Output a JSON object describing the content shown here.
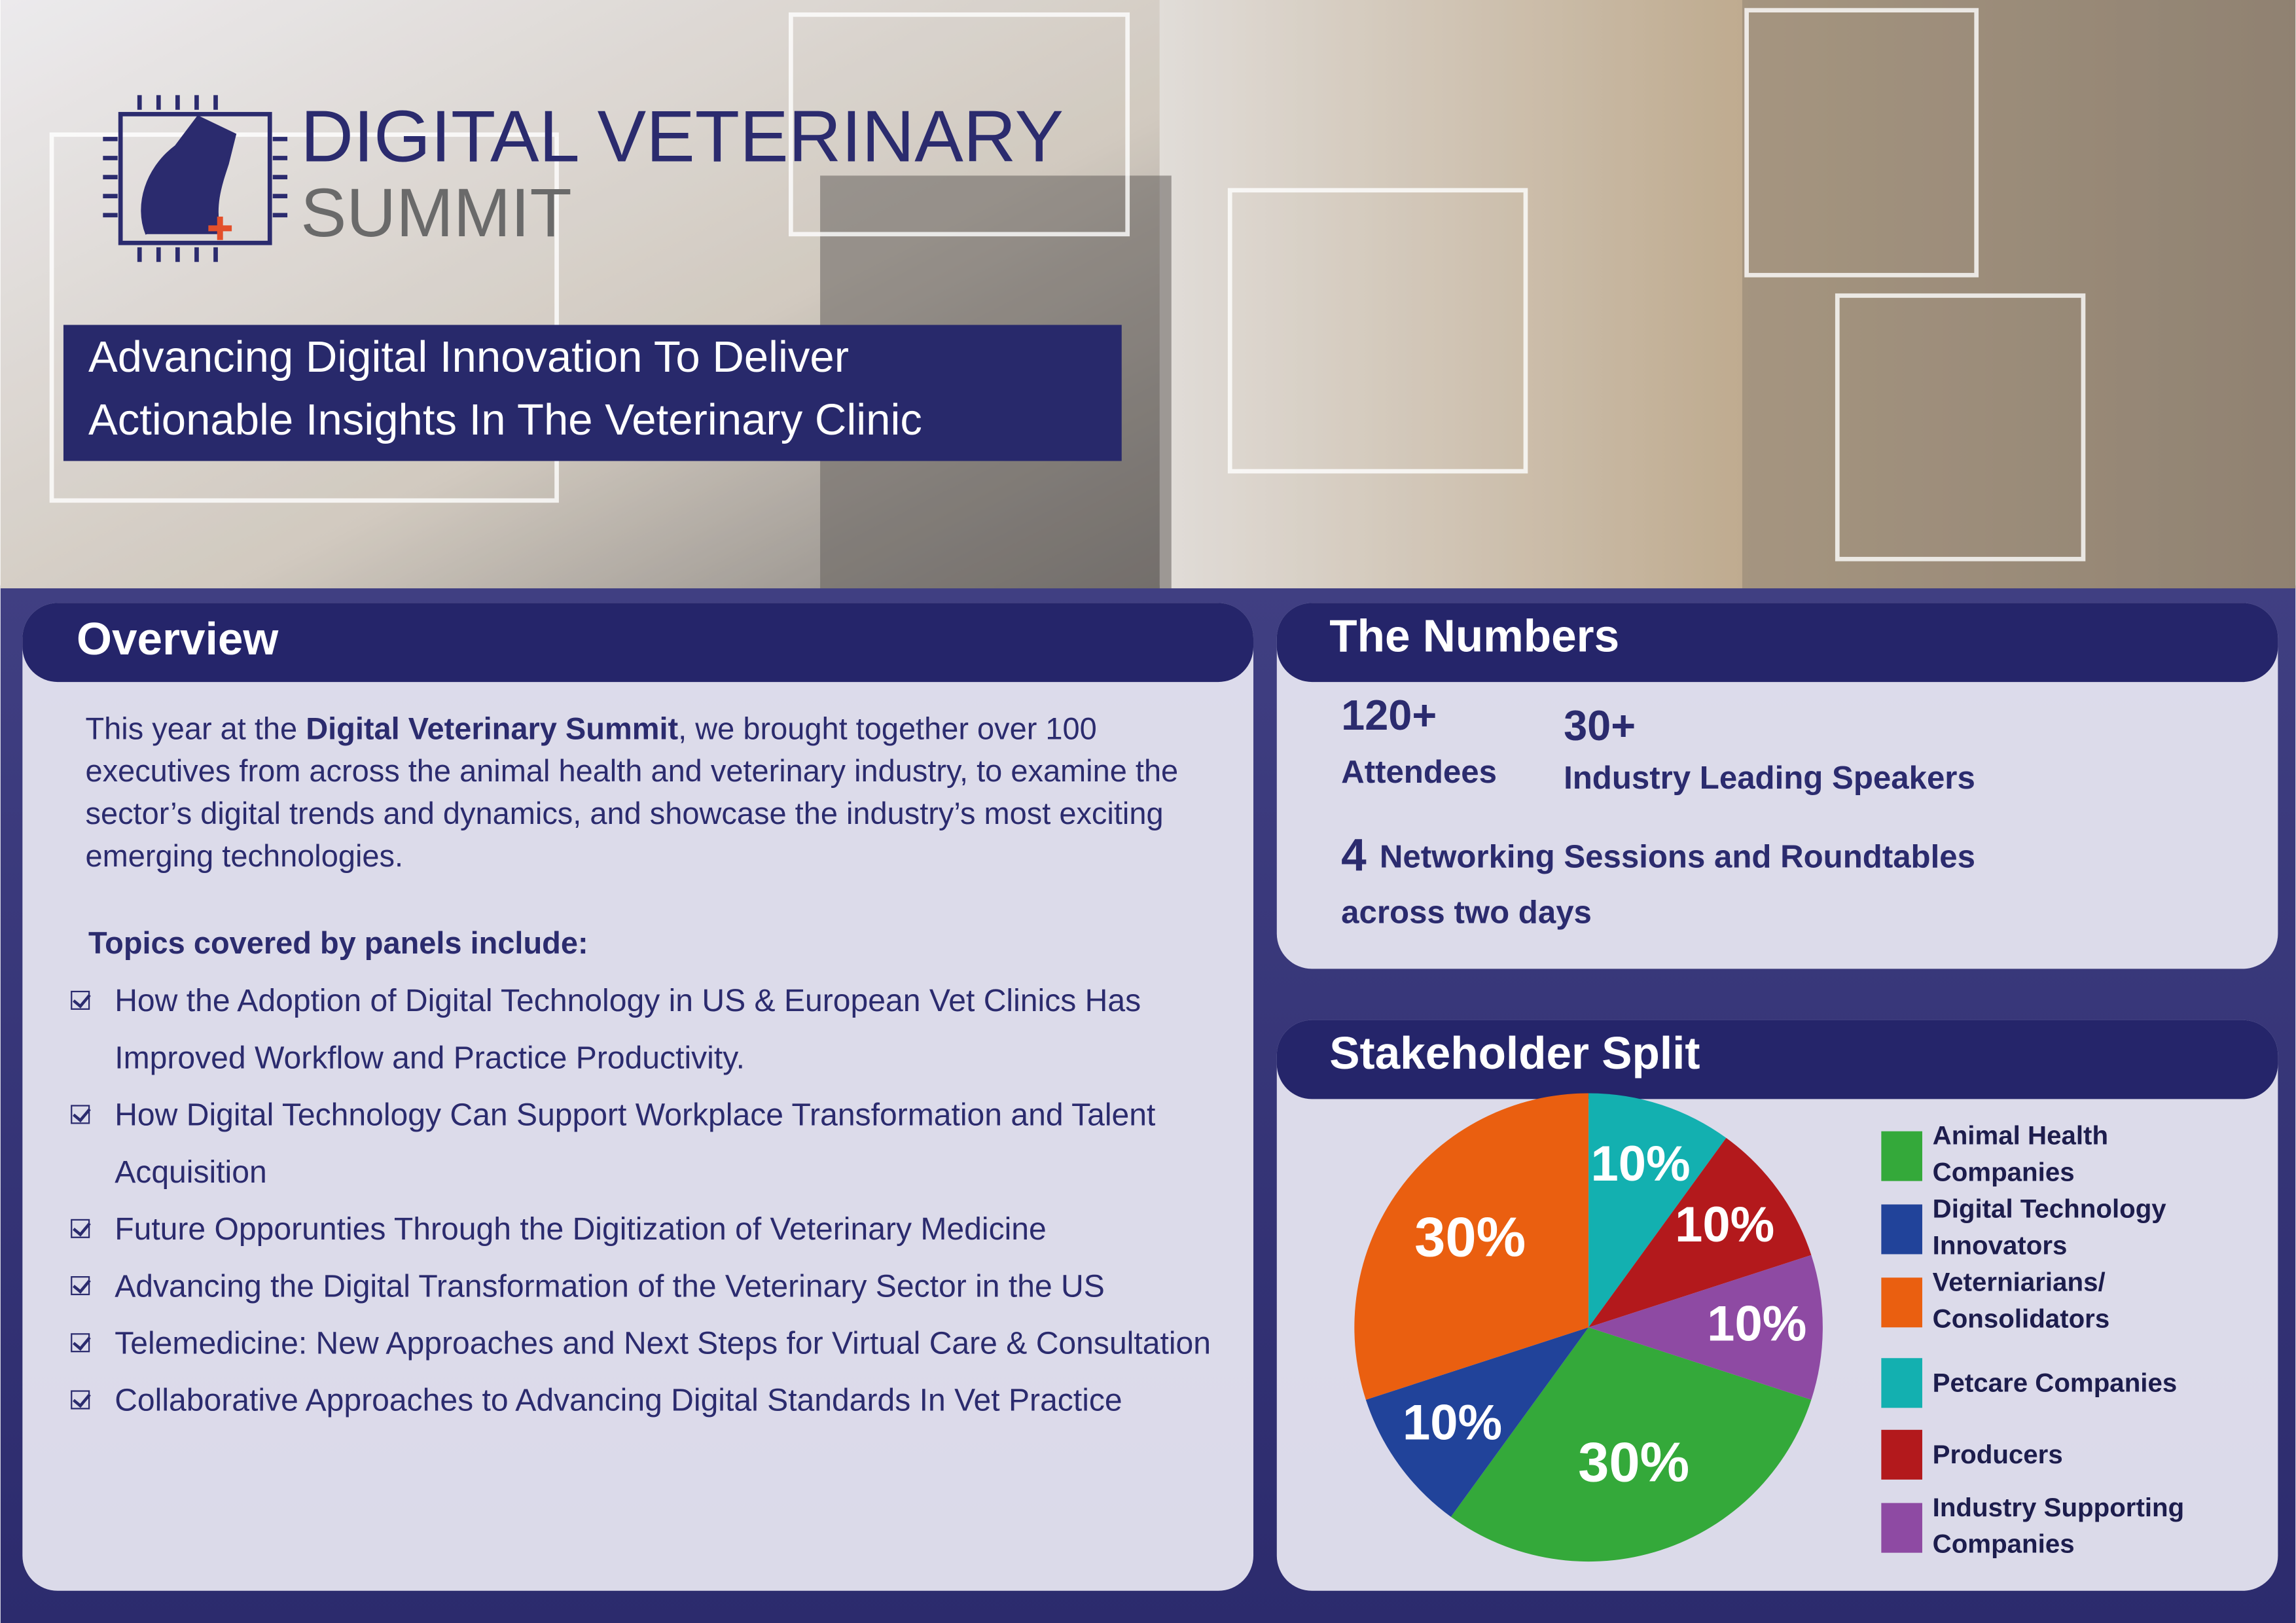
{
  "header": {
    "logo_line1": "DIGITAL VETERINARY",
    "logo_line2": "SUMMIT",
    "tagline": [
      "Advancing Digital Innovation To Deliver",
      "Actionable Insights In The Veterinary Clinic"
    ]
  },
  "overview": {
    "title": "Overview",
    "intro": {
      "before": "This year at the ",
      "bold": "Digital Veterinary Summit",
      "after": ", we brought together over 100 executives from across the animal health and veterinary industry, to examine the sector’s digital trends and dynamics, and showcase the industry’s most exciting emerging technologies."
    },
    "topics_heading": "Topics covered by panels include:",
    "topics": [
      "How the Adoption of Digital Technology in US & European Vet Clinics Has Improved Workflow and Practice Productivity.",
      "How Digital Technology Can Support Workplace Transformation and Talent Acquisition",
      "Future Opporunties Through the Digitization of Veterinary Medicine",
      "Advancing the Digital Transformation of the Veterinary Sector in the US",
      "Telemedicine: New Approaches and Next Steps for Virtual Care & Consultation",
      "Collaborative Approaches to Advancing Digital Standards In Vet Practice"
    ]
  },
  "numbers": {
    "title": "The Numbers",
    "attendees": {
      "figure": "120+",
      "label": "Attendees"
    },
    "speakers": {
      "figure": "30+",
      "label": "Industry Leading Speakers"
    },
    "sessions": {
      "figure": "4",
      "label": "Networking Sessions and Roundtables",
      "sub": "across two days"
    }
  },
  "chart_data": {
    "type": "pie",
    "title": "Stakeholder Split",
    "categories": [
      "Animal Health Companies",
      "Digital Technology Innovators",
      "Veterniarians/ Consolidators",
      "Petcare Companies",
      "Producers",
      "Industry Supporting Companies"
    ],
    "values": [
      30,
      10,
      30,
      10,
      10,
      10
    ],
    "value_labels": [
      "30%",
      "10%",
      "30%",
      "10%",
      "10%",
      "10%"
    ],
    "colors": [
      "#34a93a",
      "#21439a",
      "#ea5f10",
      "#13b0b0",
      "#b3191c",
      "#8e4aa3"
    ]
  }
}
